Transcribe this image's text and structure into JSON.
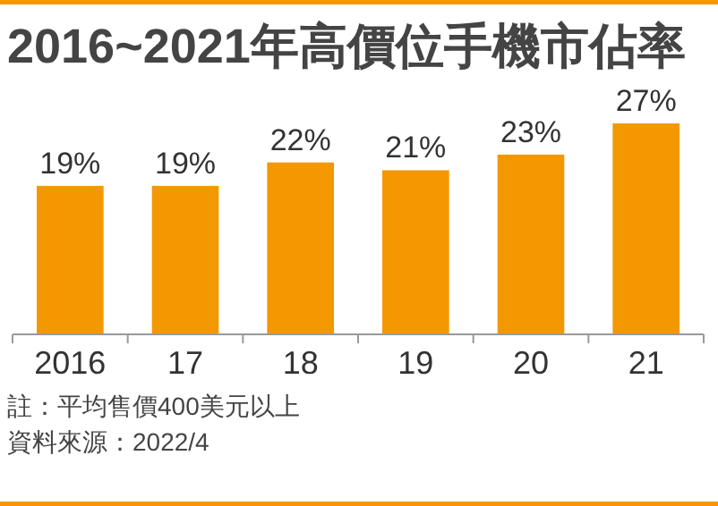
{
  "chart_data": {
    "type": "bar",
    "title": "2016~2021年高價位手機市佔率",
    "categories": [
      "2016",
      "17",
      "18",
      "19",
      "20",
      "21"
    ],
    "values": [
      19,
      19,
      22,
      21,
      23,
      27
    ],
    "value_labels": [
      "19%",
      "19%",
      "22%",
      "21%",
      "23%",
      "27%"
    ],
    "color": "#f39800",
    "annotations": [
      "註：平均售價400美元以上",
      "資料來源：2022/4"
    ]
  }
}
